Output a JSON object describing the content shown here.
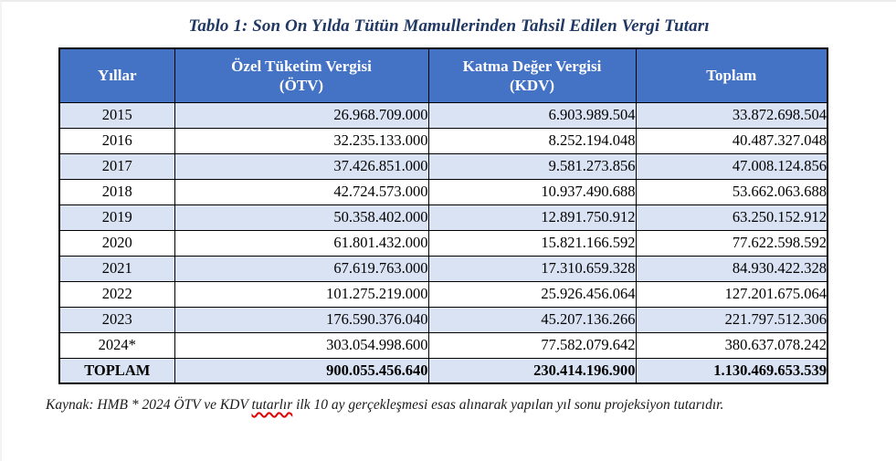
{
  "title": "Tablo 1: Son On Yılda Tütün Mamullerinden Tahsil Edilen Vergi Tutarı",
  "colors": {
    "header_bg": "#4472C4",
    "header_text": "#FFFFFF",
    "row_stripe": "#DAE3F3",
    "title_color": "#1F3864",
    "border": "#000000",
    "spellcheck_underline": "#E00000"
  },
  "table": {
    "headers": {
      "year": "Yıllar",
      "otv": "Özel Tüketim Vergisi\n(ÖTV)",
      "kdv": "Katma Değer Vergisi\n(KDV)",
      "total": "Toplam"
    },
    "rows": [
      {
        "year": "2015",
        "otv": "26.968.709.000",
        "kdv": "6.903.989.504",
        "total": "33.872.698.504"
      },
      {
        "year": "2016",
        "otv": "32.235.133.000",
        "kdv": "8.252.194.048",
        "total": "40.487.327.048"
      },
      {
        "year": "2017",
        "otv": "37.426.851.000",
        "kdv": "9.581.273.856",
        "total": "47.008.124.856"
      },
      {
        "year": "2018",
        "otv": "42.724.573.000",
        "kdv": "10.937.490.688",
        "total": "53.662.063.688"
      },
      {
        "year": "2019",
        "otv": "50.358.402.000",
        "kdv": "12.891.750.912",
        "total": "63.250.152.912"
      },
      {
        "year": "2020",
        "otv": "61.801.432.000",
        "kdv": "15.821.166.592",
        "total": "77.622.598.592"
      },
      {
        "year": "2021",
        "otv": "67.619.763.000",
        "kdv": "17.310.659.328",
        "total": "84.930.422.328"
      },
      {
        "year": "2022",
        "otv": "101.275.219.000",
        "kdv": "25.926.456.064",
        "total": "127.201.675.064"
      },
      {
        "year": "2023",
        "otv": "176.590.376.040",
        "kdv": "45.207.136.266",
        "total": "221.797.512.306"
      },
      {
        "year": "2024*",
        "otv": "303.054.998.600",
        "kdv": "77.582.079.642",
        "total": "380.637.078.242"
      }
    ],
    "total_row": {
      "label": "TOPLAM",
      "otv": "900.055.456.640",
      "kdv": "230.414.196.900",
      "total": "1.130.469.653.539"
    }
  },
  "footnote": {
    "prefix": "Kaynak: HMB * 2024 ÖTV ve KDV ",
    "misspelled": "tutarlır",
    "suffix": " ilk 10 ay gerçekleşmesi esas alınarak yapılan yıl sonu projeksiyon tutarıdır."
  }
}
